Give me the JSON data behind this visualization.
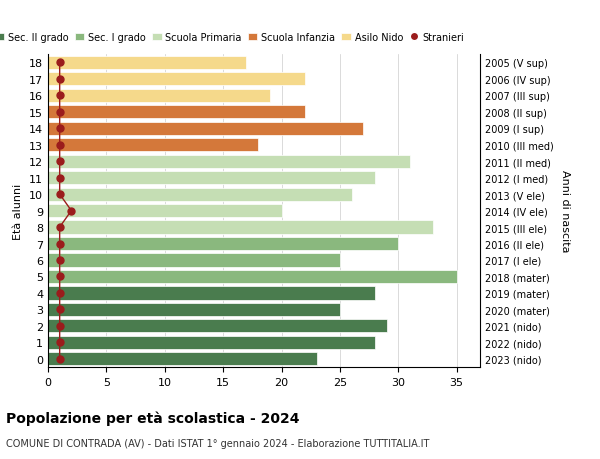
{
  "ages": [
    18,
    17,
    16,
    15,
    14,
    13,
    12,
    11,
    10,
    9,
    8,
    7,
    6,
    5,
    4,
    3,
    2,
    1,
    0
  ],
  "right_labels": [
    "2005 (V sup)",
    "2006 (IV sup)",
    "2007 (III sup)",
    "2008 (II sup)",
    "2009 (I sup)",
    "2010 (III med)",
    "2011 (II med)",
    "2012 (I med)",
    "2013 (V ele)",
    "2014 (IV ele)",
    "2015 (III ele)",
    "2016 (II ele)",
    "2017 (I ele)",
    "2018 (mater)",
    "2019 (mater)",
    "2020 (mater)",
    "2021 (nido)",
    "2022 (nido)",
    "2023 (nido)"
  ],
  "bar_values": [
    23,
    28,
    29,
    25,
    28,
    35,
    25,
    30,
    33,
    20,
    26,
    28,
    31,
    18,
    27,
    22,
    19,
    22,
    17
  ],
  "bar_colors": [
    "#4a7c4e",
    "#4a7c4e",
    "#4a7c4e",
    "#4a7c4e",
    "#4a7c4e",
    "#8ab87e",
    "#8ab87e",
    "#8ab87e",
    "#c5deb4",
    "#c5deb4",
    "#c5deb4",
    "#c5deb4",
    "#c5deb4",
    "#d4783a",
    "#d4783a",
    "#d4783a",
    "#f5d98b",
    "#f5d98b",
    "#f5d98b"
  ],
  "stranieri_values": [
    1,
    1,
    1,
    1,
    1,
    1,
    1,
    1,
    1,
    2,
    1,
    1,
    1,
    1,
    1,
    1,
    1,
    1,
    1
  ],
  "stranieri_color": "#9b1c1c",
  "title": "Popolazione per età scolastica - 2024",
  "subtitle": "COMUNE DI CONTRADA (AV) - Dati ISTAT 1° gennaio 2024 - Elaborazione TUTTITALIA.IT",
  "ylabel": "Età alunni",
  "ylabel_right": "Anni di nascita",
  "xlim": [
    0,
    37
  ],
  "xticks": [
    0,
    5,
    10,
    15,
    20,
    25,
    30,
    35
  ],
  "legend_labels": [
    "Sec. II grado",
    "Sec. I grado",
    "Scuola Primaria",
    "Scuola Infanzia",
    "Asilo Nido",
    "Stranieri"
  ],
  "legend_colors": [
    "#4a7c4e",
    "#8ab87e",
    "#c5deb4",
    "#d4783a",
    "#f5d98b",
    "#9b1c1c"
  ],
  "bg_color": "#ffffff",
  "bar_height": 0.8,
  "grid_color": "#cccccc"
}
